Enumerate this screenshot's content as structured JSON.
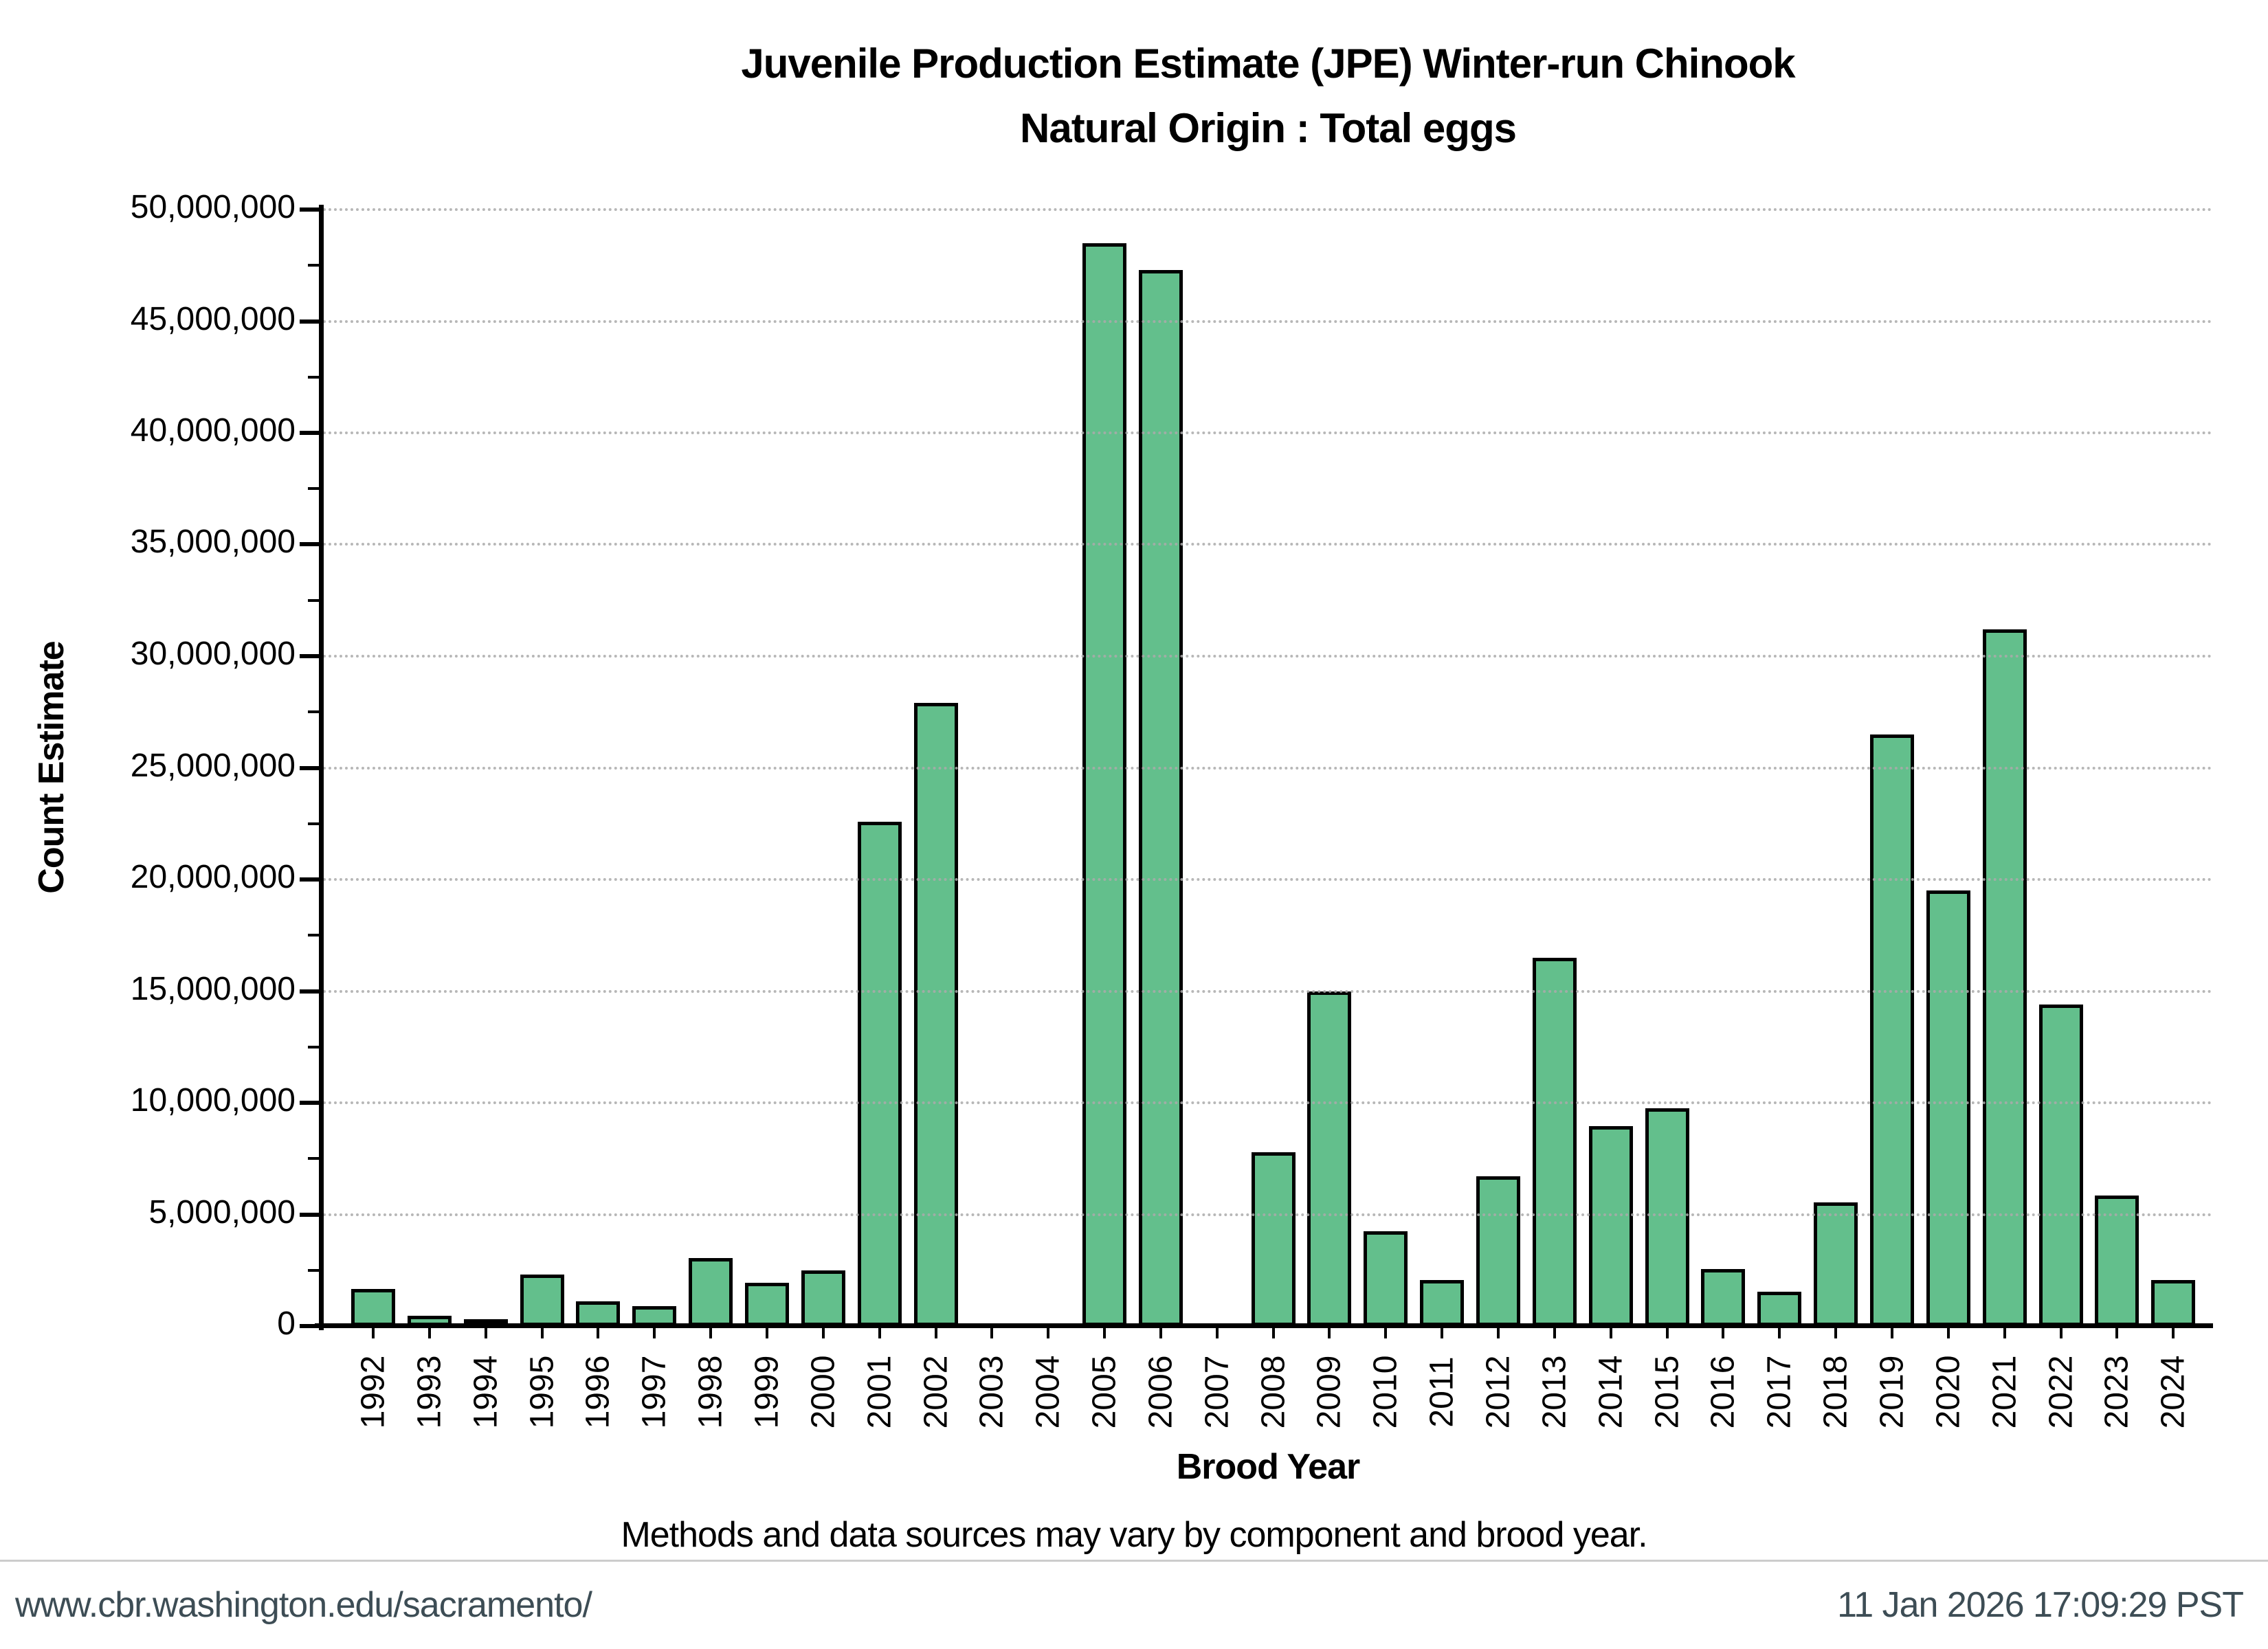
{
  "title": {
    "line1": "Juvenile Production Estimate (JPE) Winter-run Chinook",
    "line2": "Natural Origin : Total eggs"
  },
  "chart_data": {
    "type": "bar",
    "title": "Juvenile Production Estimate (JPE) Winter-run Chinook — Natural Origin : Total eggs",
    "xlabel": "Brood Year",
    "ylabel": "Count Estimate",
    "ylim": [
      0,
      50000000
    ],
    "ytick_interval": 5000000,
    "ytick_minor_interval": 2500000,
    "ytick_labels": [
      "0",
      "5,000,000",
      "10,000,000",
      "15,000,000",
      "20,000,000",
      "25,000,000",
      "30,000,000",
      "35,000,000",
      "40,000,000",
      "45,000,000",
      "50,000,000"
    ],
    "grid": {
      "style": "dotted",
      "color": "#ababab",
      "lines": "horizontal at every 5,000,000"
    },
    "legend": "none",
    "bar_color": "#63bf8c",
    "bar_edge_color": "#000000",
    "categories": [
      "1992",
      "1993",
      "1994",
      "1995",
      "1996",
      "1997",
      "1998",
      "1999",
      "2000",
      "2001",
      "2002",
      "2003",
      "2004",
      "2005",
      "2006",
      "2007",
      "2008",
      "2009",
      "2010",
      "2011",
      "2012",
      "2013",
      "2014",
      "2015",
      "2016",
      "2017",
      "2018",
      "2019",
      "2020",
      "2021",
      "2022",
      "2023",
      "2024"
    ],
    "values": [
      1650000,
      450000,
      200000,
      2300000,
      1100000,
      900000,
      3050000,
      1950000,
      2500000,
      22600000,
      27900000,
      null,
      null,
      48500000,
      47300000,
      null,
      7800000,
      15000000,
      4250000,
      2050000,
      6700000,
      16500000,
      8950000,
      9750000,
      2550000,
      1550000,
      5550000,
      26500000,
      19500000,
      31200000,
      14400000,
      5850000,
      2050000
    ],
    "missing_years": [
      "2003",
      "2004",
      "2007"
    ]
  },
  "annotation": "Methods and data sources may vary by component and brood year.",
  "footer": {
    "url": "www.cbr.washington.edu/sacramento/",
    "timestamp": "11 Jan 2026 17:09:29 PST",
    "text_color": "#3d4d55"
  }
}
